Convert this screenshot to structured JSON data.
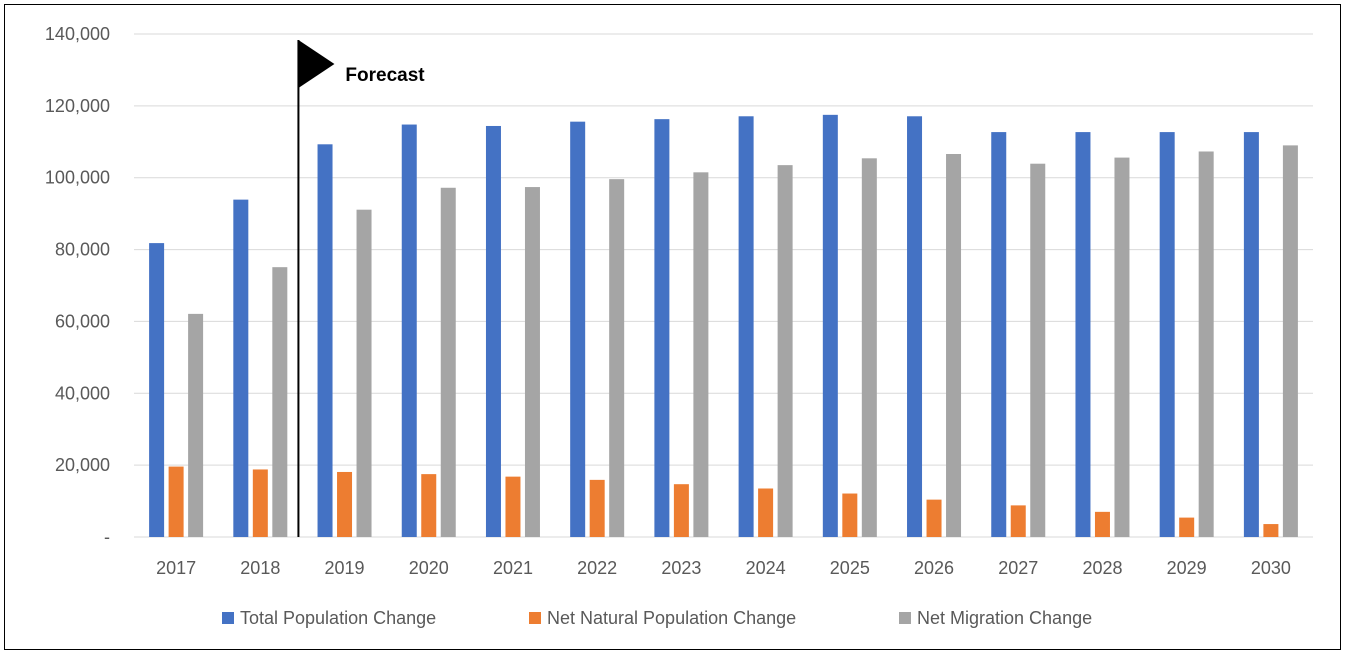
{
  "chart_data": {
    "type": "bar",
    "categories": [
      "2017",
      "2018",
      "2019",
      "2020",
      "2021",
      "2022",
      "2023",
      "2024",
      "2025",
      "2026",
      "2027",
      "2028",
      "2029",
      "2030"
    ],
    "series": [
      {
        "name": "Total Population Change",
        "color": "#4472C4",
        "values": [
          81800,
          93900,
          109300,
          114800,
          114400,
          115600,
          116300,
          117100,
          117500,
          117100,
          112700,
          112700,
          112700,
          112700
        ]
      },
      {
        "name": "Net Natural Population Change",
        "color": "#ED7D31",
        "values": [
          19600,
          18800,
          18100,
          17500,
          16800,
          15900,
          14700,
          13500,
          12100,
          10400,
          8800,
          7000,
          5400,
          3600
        ]
      },
      {
        "name": "Net Migration Change",
        "color": "#A5A5A5",
        "values": [
          62100,
          75100,
          91100,
          97200,
          97400,
          99600,
          101500,
          103500,
          105400,
          106600,
          103900,
          105600,
          107300,
          109000
        ]
      }
    ],
    "ylim": [
      0,
      140000
    ],
    "y_ticks": [
      {
        "value": 0,
        "label": "-"
      },
      {
        "value": 20000,
        "label": "20,000"
      },
      {
        "value": 40000,
        "label": "40,000"
      },
      {
        "value": 60000,
        "label": "60,000"
      },
      {
        "value": 80000,
        "label": "80,000"
      },
      {
        "value": 100000,
        "label": "100,000"
      },
      {
        "value": 120000,
        "label": "120,000"
      },
      {
        "value": 140000,
        "label": "140,000"
      }
    ],
    "grid": true,
    "legend_position": "bottom",
    "annotation": {
      "text": "Forecast",
      "between": [
        "2018",
        "2019"
      ]
    }
  }
}
